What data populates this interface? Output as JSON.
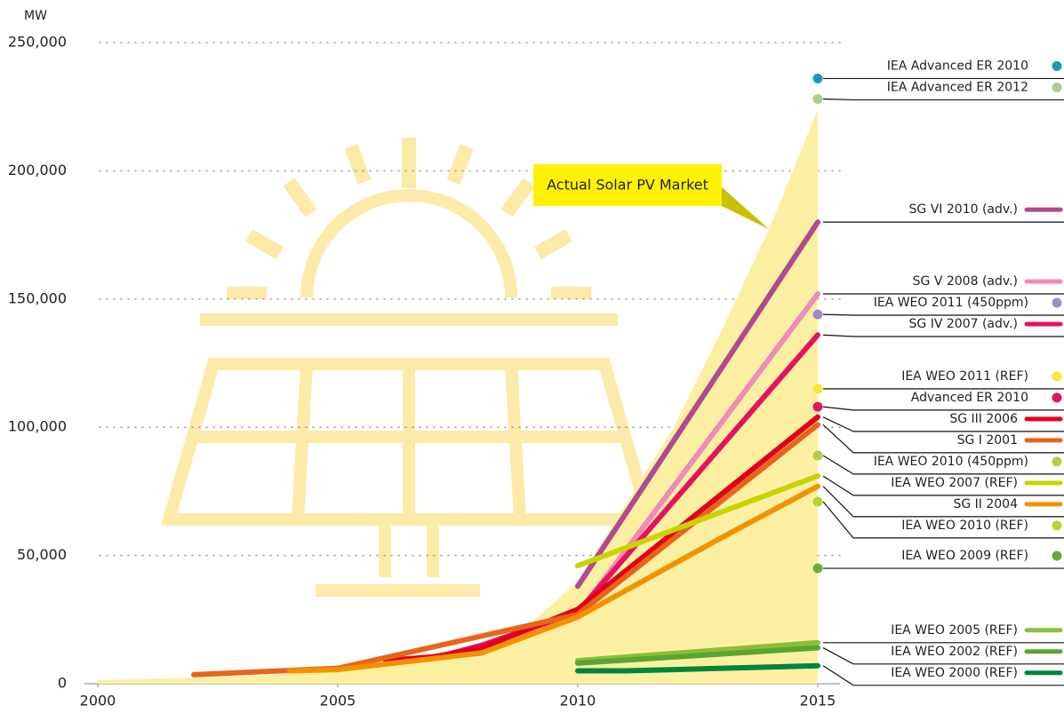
{
  "chart_data": {
    "type": "line",
    "y_label": "MW",
    "xlim": [
      2000,
      2015
    ],
    "xticks": [
      2000,
      2005,
      2010,
      2015
    ],
    "ylim": [
      0,
      250000
    ],
    "yticks": [
      0,
      {
        "value": 50000,
        "label": "50,000"
      },
      {
        "value": 100000,
        "label": "100,000"
      },
      {
        "value": 150000,
        "label": "150,000"
      },
      {
        "value": 200000,
        "label": "200,000"
      },
      {
        "value": 250000,
        "label": "250,000"
      }
    ],
    "grid": true,
    "series": [
      {
        "name": "Actual Solar PV Market",
        "style": "area",
        "color": "#fbf0a2",
        "x": [
          2000,
          2001,
          2002,
          2003,
          2004,
          2005,
          2006,
          2007,
          2008,
          2009,
          2010,
          2011,
          2012,
          2013,
          2014,
          2015
        ],
        "values": [
          1400,
          1800,
          2200,
          2800,
          3900,
          5300,
          6900,
          9400,
          16000,
          23000,
          40000,
          70000,
          100000,
          138000,
          178000,
          224000
        ]
      },
      {
        "name": "IEA Advanced ER 2010",
        "style": "point",
        "color": "#1b9bb3",
        "x": [
          2015
        ],
        "values": [
          236000
        ]
      },
      {
        "name": "IEA Advanced ER 2012",
        "style": "point",
        "color": "#a8cf8a",
        "x": [
          2015
        ],
        "values": [
          228000
        ]
      },
      {
        "name": "SG VI 2010 (adv.)",
        "style": "line",
        "color": "#b04a8f",
        "x": [
          2010,
          2015
        ],
        "values": [
          38000,
          180000
        ]
      },
      {
        "name": "SG V 2008 (adv.)",
        "style": "line",
        "color": "#f08ab8",
        "x": [
          2008,
          2010,
          2015
        ],
        "values": [
          15000,
          27000,
          152000
        ]
      },
      {
        "name": "IEA WEO 2011 (450ppm)",
        "style": "point",
        "color": "#a08cc4",
        "x": [
          2015
        ],
        "values": [
          144000
        ]
      },
      {
        "name": "SG IV 2007 (adv.)",
        "style": "line",
        "color": "#e5135f",
        "x": [
          2007,
          2008,
          2010,
          2015
        ],
        "values": [
          10000,
          15000,
          28000,
          136000
        ]
      },
      {
        "name": "IEA WEO 2011 (REF)",
        "style": "point",
        "color": "#fde539",
        "x": [
          2015
        ],
        "values": [
          115000
        ]
      },
      {
        "name": "Advanced ER 2010",
        "style": "point",
        "color": "#e0185f",
        "x": [
          2015
        ],
        "values": [
          108000
        ]
      },
      {
        "name": "SG III 2006",
        "style": "line",
        "color": "#e3001b",
        "x": [
          2006,
          2007,
          2008,
          2010,
          2015
        ],
        "values": [
          9000,
          10500,
          14000,
          29000,
          104000
        ]
      },
      {
        "name": "SG I 2001",
        "style": "line",
        "color": "#e8641b",
        "x": [
          2002,
          2005,
          2010,
          2015
        ],
        "values": [
          3500,
          6000,
          27000,
          101000
        ]
      },
      {
        "name": "IEA WEO 2010 (450ppm)",
        "style": "point",
        "color": "#b5cc4a",
        "x": [
          2015
        ],
        "values": [
          89000
        ]
      },
      {
        "name": "IEA WEO 2007 (REF)",
        "style": "line",
        "color": "#c8d400",
        "x": [
          2010,
          2015
        ],
        "values": [
          46000,
          81000
        ]
      },
      {
        "name": "SG II 2004",
        "style": "line",
        "color": "#f39200",
        "x": [
          2004,
          2005,
          2008,
          2010,
          2013,
          2015
        ],
        "values": [
          5000,
          5500,
          12000,
          26000,
          57000,
          77000
        ]
      },
      {
        "name": "IEA WEO 2010 (REF)",
        "style": "point",
        "color": "#b8d432",
        "x": [
          2015
        ],
        "values": [
          71000
        ]
      },
      {
        "name": "IEA WEO 2009 (REF)",
        "style": "point",
        "color": "#6aaa38",
        "x": [
          2015
        ],
        "values": [
          45000
        ]
      },
      {
        "name": "IEA WEO 2005 (REF)",
        "style": "line",
        "color": "#8ebd3b",
        "x": [
          2010,
          2015
        ],
        "values": [
          9000,
          16000
        ]
      },
      {
        "name": "IEA WEO 2002 (REF)",
        "style": "line",
        "color": "#5aa532",
        "x": [
          2010,
          2015
        ],
        "values": [
          8000,
          14000
        ]
      },
      {
        "name": "IEA WEO 2000 (REF)",
        "style": "line",
        "color": "#00843d",
        "x": [
          2010,
          2011,
          2013,
          2015
        ],
        "values": [
          5000,
          5000,
          6000,
          7000
        ]
      }
    ]
  }
}
